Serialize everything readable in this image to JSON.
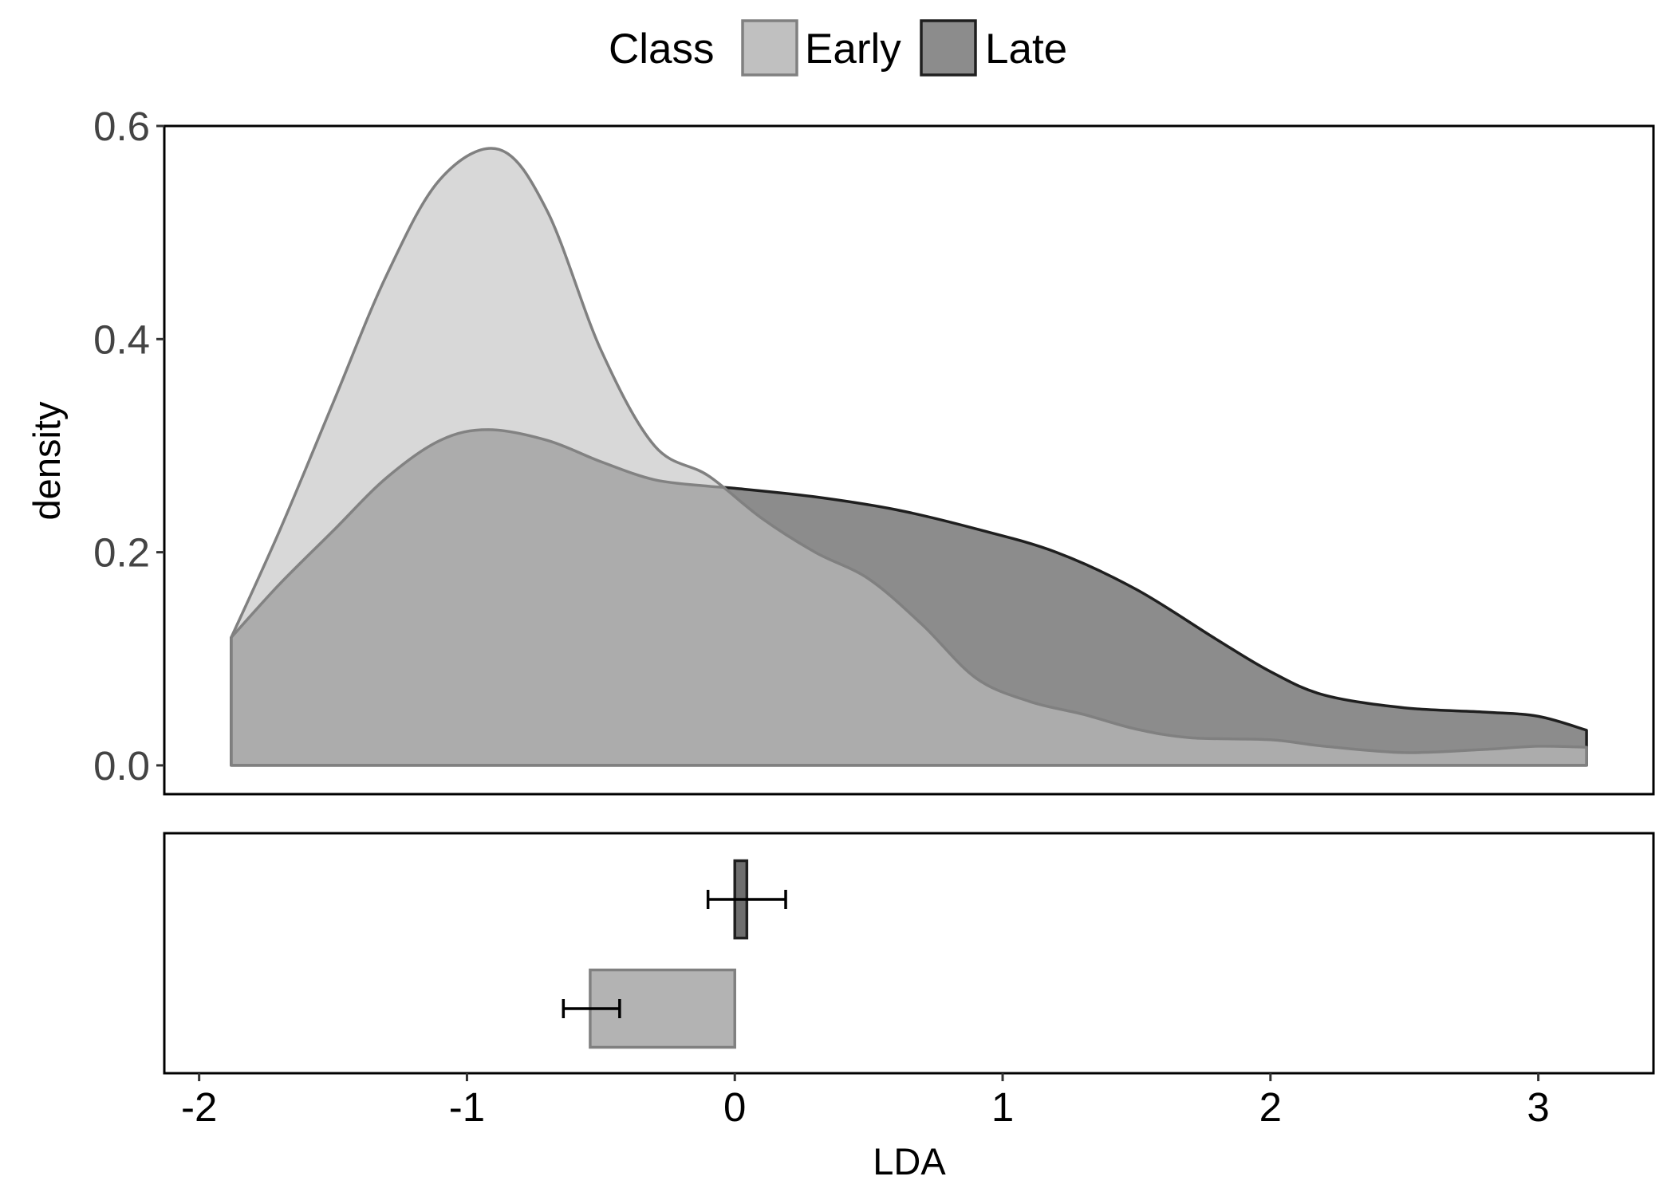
{
  "legend": {
    "title": "Class",
    "entries": [
      {
        "label": "Early",
        "fill": "#c0c0c0",
        "stroke": "#808080"
      },
      {
        "label": "Late",
        "fill": "#8c8c8c",
        "stroke": "#1f1f1f"
      }
    ],
    "position": "top"
  },
  "chart_data": [
    {
      "type": "area",
      "subtype": "density",
      "xlabel": "",
      "ylabel": "density",
      "xlim": [
        -2.13,
        3.43
      ],
      "ylim": [
        -0.027,
        0.6
      ],
      "yticks": [
        0.0,
        0.2,
        0.4,
        0.6
      ],
      "ytick_labels": [
        "0.0",
        "0.2",
        "0.4",
        "0.6"
      ],
      "grid": false,
      "series": [
        {
          "name": "Early",
          "fill": "#c0c0c0",
          "stroke": "#808080",
          "points": [
            [
              -1.88,
              0.12
            ],
            [
              -1.7,
              0.22
            ],
            [
              -1.5,
              0.34
            ],
            [
              -1.3,
              0.46
            ],
            [
              -1.1,
              0.55
            ],
            [
              -0.88,
              0.578
            ],
            [
              -0.7,
              0.52
            ],
            [
              -0.5,
              0.39
            ],
            [
              -0.3,
              0.3
            ],
            [
              -0.1,
              0.272
            ],
            [
              0.1,
              0.232
            ],
            [
              0.3,
              0.2
            ],
            [
              0.5,
              0.175
            ],
            [
              0.7,
              0.132
            ],
            [
              0.9,
              0.082
            ],
            [
              1.1,
              0.06
            ],
            [
              1.3,
              0.048
            ],
            [
              1.5,
              0.034
            ],
            [
              1.7,
              0.026
            ],
            [
              2.0,
              0.024
            ],
            [
              2.2,
              0.018
            ],
            [
              2.5,
              0.012
            ],
            [
              2.8,
              0.015
            ],
            [
              3.0,
              0.018
            ],
            [
              3.18,
              0.017
            ]
          ]
        },
        {
          "name": "Late",
          "fill": "#8c8c8c",
          "stroke": "#1f1f1f",
          "points": [
            [
              -1.88,
              0.12
            ],
            [
              -1.7,
              0.17
            ],
            [
              -1.5,
              0.22
            ],
            [
              -1.3,
              0.27
            ],
            [
              -1.1,
              0.305
            ],
            [
              -0.92,
              0.315
            ],
            [
              -0.7,
              0.305
            ],
            [
              -0.5,
              0.285
            ],
            [
              -0.3,
              0.268
            ],
            [
              -0.1,
              0.262
            ],
            [
              0.0,
              0.26
            ],
            [
              0.3,
              0.252
            ],
            [
              0.6,
              0.24
            ],
            [
              0.9,
              0.222
            ],
            [
              1.2,
              0.2
            ],
            [
              1.5,
              0.165
            ],
            [
              1.8,
              0.118
            ],
            [
              2.0,
              0.088
            ],
            [
              2.2,
              0.066
            ],
            [
              2.5,
              0.054
            ],
            [
              2.8,
              0.05
            ],
            [
              3.0,
              0.046
            ],
            [
              3.18,
              0.033
            ]
          ]
        }
      ]
    },
    {
      "type": "bar",
      "orientation": "horizontal",
      "xlabel": "LDA",
      "xlim": [
        -2.13,
        3.43
      ],
      "xticks": [
        -2,
        -1,
        0,
        1,
        2,
        3
      ],
      "xtick_labels": [
        "-2",
        "-1",
        "0",
        "1",
        "2",
        "3"
      ],
      "series": [
        {
          "name": "Late",
          "value": 0.045,
          "error_low": -0.1,
          "error_high": 0.19,
          "fill": "#6e6e6e",
          "stroke": "#1f1f1f",
          "row": 1
        },
        {
          "name": "Early",
          "value": -0.54,
          "error_low": -0.64,
          "error_high": -0.43,
          "fill": "#b3b3b3",
          "stroke": "#808080",
          "row": 2
        }
      ]
    }
  ]
}
